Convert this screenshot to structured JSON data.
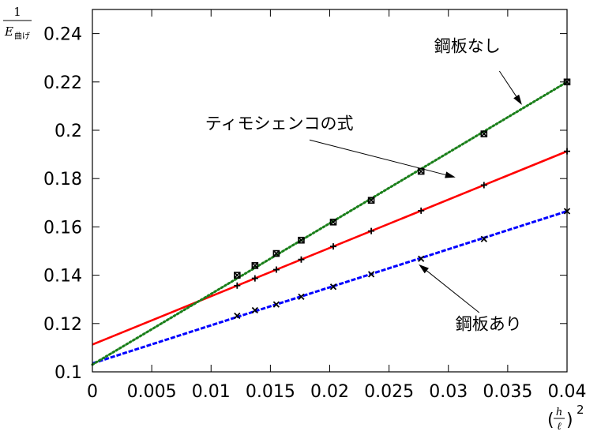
{
  "chart_data": {
    "type": "line",
    "title": "",
    "xlim": [
      0,
      0.04
    ],
    "ylim": [
      0.1,
      0.25
    ],
    "xticks": [
      "0",
      "0.005",
      "0.01",
      "0.015",
      "0.02",
      "0.025",
      "0.03",
      "0.035",
      "0.04"
    ],
    "yticks": [
      "0.1",
      "0.12",
      "0.14",
      "0.16",
      "0.18",
      "0.2",
      "0.22",
      "0.24"
    ],
    "xlabel": {
      "open": "(",
      "numerator": "h",
      "denominator": "ℓ",
      "close": ")",
      "exponent": "2"
    },
    "ylabel": {
      "numerator": "1",
      "symbol": "E",
      "subscript": "曲げ"
    },
    "grid": false,
    "legend": "none",
    "series": [
      {
        "name": "鋼板なし",
        "color": "#1a7f1a",
        "style": "dotted",
        "marker": "square-x",
        "fit": [
          [
            0,
            0.103
          ],
          [
            0.04,
            0.22
          ]
        ],
        "points": [
          [
            0.0122,
            0.14
          ],
          [
            0.0137,
            0.144
          ],
          [
            0.0155,
            0.149
          ],
          [
            0.0176,
            0.1545
          ],
          [
            0.0203,
            0.162
          ],
          [
            0.0235,
            0.171
          ],
          [
            0.0277,
            0.183
          ],
          [
            0.033,
            0.1985
          ],
          [
            0.04,
            0.22
          ]
        ]
      },
      {
        "name": "ティモシェンコの式",
        "color": "#ff0000",
        "style": "solid",
        "marker": "plus",
        "fit": [
          [
            0,
            0.1113
          ],
          [
            0.04,
            0.1913
          ]
        ],
        "points": [
          [
            0.0122,
            0.1357
          ],
          [
            0.0137,
            0.1387
          ],
          [
            0.0155,
            0.1423
          ],
          [
            0.0176,
            0.1465
          ],
          [
            0.0203,
            0.1519
          ],
          [
            0.0235,
            0.1583
          ],
          [
            0.0277,
            0.1667
          ],
          [
            0.033,
            0.1773
          ],
          [
            0.04,
            0.1913
          ]
        ]
      },
      {
        "name": "鋼板あり",
        "color": "#0000ff",
        "style": "dashed",
        "marker": "x",
        "fit": [
          [
            0,
            0.1035
          ],
          [
            0.04,
            0.1665
          ]
        ],
        "points": [
          [
            0.0122,
            0.1232
          ],
          [
            0.0137,
            0.1255
          ],
          [
            0.0155,
            0.1279
          ],
          [
            0.0176,
            0.1311
          ],
          [
            0.0203,
            0.1352
          ],
          [
            0.0235,
            0.1404
          ],
          [
            0.0277,
            0.1468
          ],
          [
            0.033,
            0.155
          ],
          [
            0.04,
            0.1665
          ]
        ]
      }
    ],
    "annotations": [
      {
        "text": "鋼板なし",
        "x": 0.0288,
        "y": 0.2325,
        "arrow_from": [
          0.0343,
          0.2245
        ],
        "arrow_to": [
          0.0362,
          0.2105
        ]
      },
      {
        "text": "ティモシェンコの式",
        "x": 0.0095,
        "y": 0.2005,
        "arrow_from": [
          0.0183,
          0.196
        ],
        "arrow_to": [
          0.0306,
          0.1805
        ]
      },
      {
        "text": "鋼板あり",
        "x": 0.0306,
        "y": 0.1175,
        "arrow_from": [
          0.0326,
          0.1245
        ],
        "arrow_to": [
          0.0275,
          0.1445
        ]
      }
    ]
  }
}
